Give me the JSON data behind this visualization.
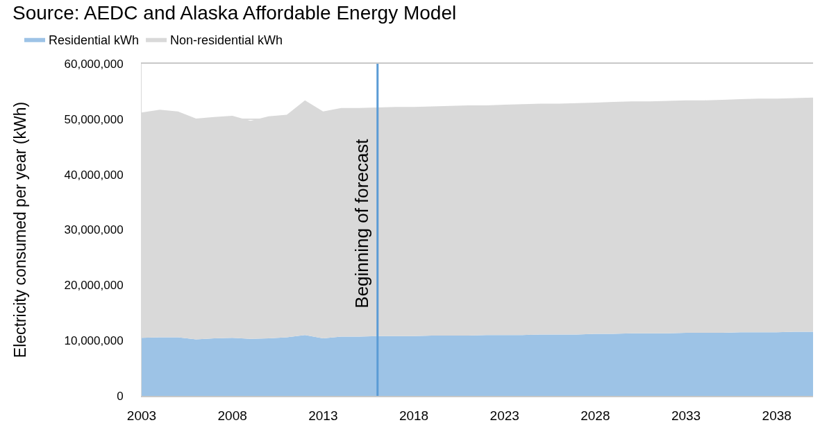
{
  "chart_data": {
    "type": "area",
    "stacked": true,
    "annotations": [
      "Source: AEDC and Alaska Affordable Energy Model"
    ],
    "ylabel": "Electricity consumed per year (kWh)",
    "x": [
      2003,
      2004,
      2005,
      2006,
      2007,
      2008,
      2009,
      2010,
      2011,
      2012,
      2013,
      2014,
      2015,
      2016,
      2017,
      2018,
      2019,
      2020,
      2021,
      2022,
      2023,
      2024,
      2025,
      2026,
      2027,
      2028,
      2029,
      2030,
      2031,
      2032,
      2033,
      2034,
      2035,
      2036,
      2037,
      2038,
      2039,
      2040
    ],
    "series": [
      {
        "name": "Residential kWh",
        "color": "#9dc3e6",
        "values": [
          10500000,
          10600000,
          10600000,
          10200000,
          10400000,
          10500000,
          10300000,
          10400000,
          10600000,
          11000000,
          10400000,
          10700000,
          10700000,
          10800000,
          10800000,
          10800000,
          10900000,
          10900000,
          10900000,
          11000000,
          11000000,
          11000000,
          11100000,
          11100000,
          11100000,
          11200000,
          11200000,
          11300000,
          11300000,
          11300000,
          11400000,
          11400000,
          11400000,
          11500000,
          11500000,
          11500000,
          11600000,
          11600000
        ]
      },
      {
        "name": "Non-residential kWh",
        "color": "#d9d9d9",
        "values": [
          40700000,
          41100000,
          40800000,
          39900000,
          40000000,
          40100000,
          39400000,
          40100000,
          40200000,
          42400000,
          41000000,
          41300000,
          41300000,
          41300000,
          41400000,
          41400000,
          41400000,
          41500000,
          41600000,
          41500000,
          41600000,
          41700000,
          41700000,
          41700000,
          41800000,
          41800000,
          41900000,
          41900000,
          41900000,
          42000000,
          42000000,
          42000000,
          42100000,
          42100000,
          42200000,
          42200000,
          42200000,
          42300000
        ]
      }
    ],
    "xlim": [
      2003,
      2040
    ],
    "xticks": [
      2003,
      2008,
      2013,
      2018,
      2023,
      2028,
      2033,
      2038
    ],
    "ylim": [
      0,
      60000000
    ],
    "yticks": [
      {
        "value": 0,
        "label": "0"
      },
      {
        "value": 10000000,
        "label": "10,000,000"
      },
      {
        "value": 20000000,
        "label": "20,000,000"
      },
      {
        "value": 30000000,
        "label": "30,000,000"
      },
      {
        "value": 40000000,
        "label": "40,000,000"
      },
      {
        "value": 50000000,
        "label": "50,000,000"
      },
      {
        "value": 60000000,
        "label": "60,000,000"
      }
    ],
    "ref_lines": [
      {
        "axis": "x",
        "value": 2016,
        "label": "Beginning of forecast",
        "color": "#5b9bd5"
      }
    ],
    "grid": "y",
    "legend": "top left"
  }
}
